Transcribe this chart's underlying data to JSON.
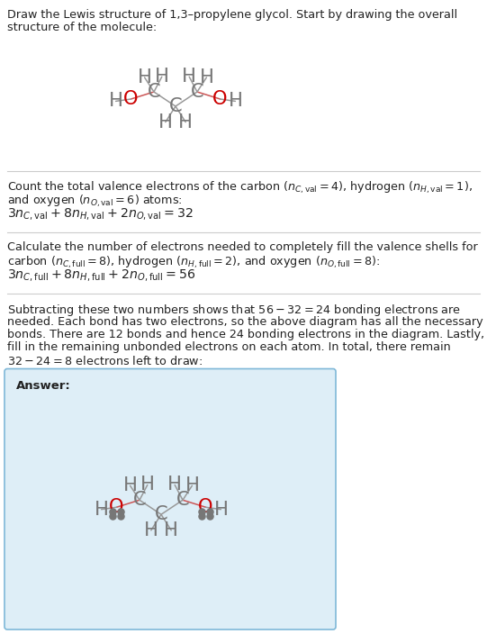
{
  "bg_color": "#ffffff",
  "answer_box_color": "#deeef7",
  "answer_box_edge": "#7fb8d8",
  "atom_color_C": "#777777",
  "atom_color_H": "#777777",
  "atom_color_O": "#cc0000",
  "bond_color_CO": "#cc5555",
  "bond_color_CC": "#999999",
  "bond_color_CH": "#999999",
  "bond_color_OH": "#999999",
  "text_color": "#222222",
  "divider_color": "#cccccc",
  "answer_label": "Answer:",
  "title_line1": "Draw the Lewis structure of 1,3–propylene glycol. Start by drawing the overall",
  "title_line2": "structure of the molecule:",
  "s1_line1": "Count the total valence electrons of the carbon ($n_{C, \\mathrm{val}} = 4$), hydrogen ($n_{H, \\mathrm{val}} = 1$),",
  "s1_line2": "and oxygen ($n_{O, \\mathrm{val}} = 6$) atoms:",
  "s1_eq": "$3 n_{C, \\mathrm{val}} + 8 n_{H, \\mathrm{val}} + 2 n_{O, \\mathrm{val}} = 32$",
  "s2_line1": "Calculate the number of electrons needed to completely fill the valence shells for",
  "s2_line2": "carbon ($n_{C, \\mathrm{full}} = 8$), hydrogen ($n_{H, \\mathrm{full}} = 2$), and oxygen ($n_{O, \\mathrm{full}} = 8$):",
  "s2_eq": "$3 n_{C, \\mathrm{full}} + 8 n_{H, \\mathrm{full}} + 2 n_{O, \\mathrm{full}} = 56$",
  "s3_line1": "Subtracting these two numbers shows that $56 - 32 = 24$ bonding electrons are",
  "s3_line2": "needed. Each bond has two electrons, so the above diagram has all the necessary",
  "s3_line3": "bonds. There are 12 bonds and hence 24 bonding electrons in the diagram. Lastly,",
  "s3_line4": "fill in the remaining unbonded electrons on each atom. In total, there remain",
  "s3_line5": "$32 - 24 = 8$ electrons left to draw:"
}
